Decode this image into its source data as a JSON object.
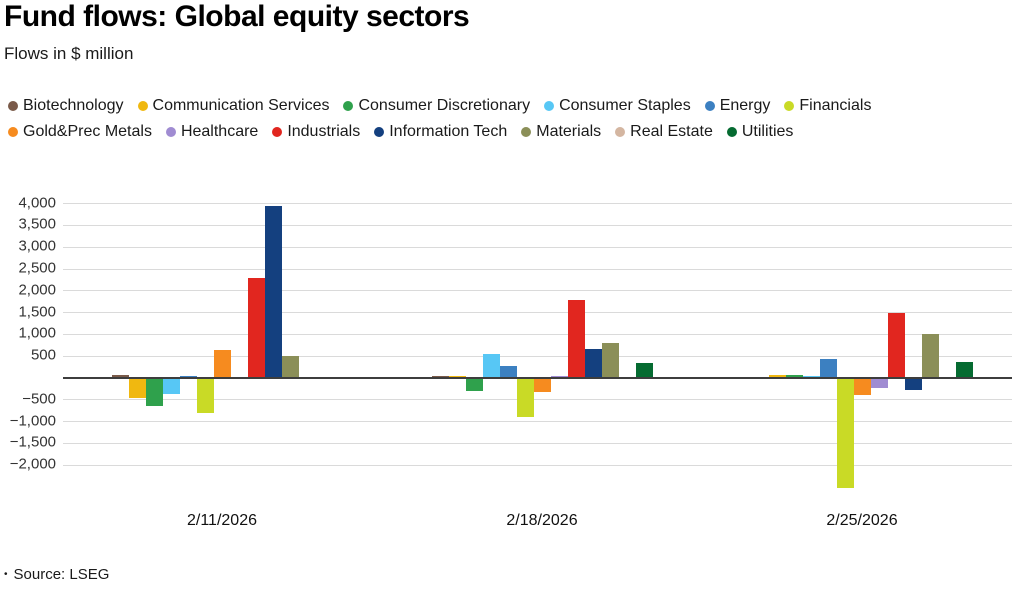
{
  "header": {
    "title": "Fund flows: Global equity sectors",
    "subtitle": "Flows in $ million"
  },
  "chart_data": {
    "type": "bar",
    "title": "Fund flows: Global equity sectors",
    "subtitle": "Flows in $ million",
    "categories": [
      "2/11/2026",
      "2/18/2026",
      "2/25/2026"
    ],
    "series": [
      {
        "name": "Biotechnology",
        "color": "#7a5a49",
        "values": [
          70,
          50,
          0
        ]
      },
      {
        "name": "Communication Services",
        "color": "#f0b810",
        "values": [
          -450,
          40,
          80
        ]
      },
      {
        "name": "Consumer Discretionary",
        "color": "#2fa14c",
        "values": [
          -650,
          -300,
          70
        ]
      },
      {
        "name": "Consumer Staples",
        "color": "#57c7f5",
        "values": [
          -370,
          550,
          50
        ]
      },
      {
        "name": "Energy",
        "color": "#3c80c1",
        "values": [
          50,
          280,
          430
        ]
      },
      {
        "name": "Financials",
        "color": "#c9da26",
        "values": [
          -800,
          -890,
          -2520
        ]
      },
      {
        "name": "Gold&Prec Metals",
        "color": "#f68b1f",
        "values": [
          650,
          -330,
          -400
        ]
      },
      {
        "name": "Healthcare",
        "color": "#a08cd2",
        "values": [
          0,
          50,
          -220
        ]
      },
      {
        "name": "Industrials",
        "color": "#e1261f",
        "values": [
          2300,
          1800,
          1500
        ]
      },
      {
        "name": "Information Tech",
        "color": "#14407f",
        "values": [
          3950,
          660,
          -280
        ]
      },
      {
        "name": "Materials",
        "color": "#8b8f58",
        "values": [
          500,
          810,
          1000
        ]
      },
      {
        "name": "Real Estate",
        "color": "#d4b6a1",
        "values": [
          0,
          -30,
          0
        ]
      },
      {
        "name": "Utilities",
        "color": "#056b31",
        "values": [
          0,
          350,
          360
        ]
      }
    ],
    "y_ticks": [
      "4,000",
      "3,500",
      "3,000",
      "2,500",
      "2,000",
      "1,500",
      "1,000",
      "500",
      "−500",
      "−1,000",
      "−1,500",
      "−2,000"
    ],
    "ylim": [
      -2700,
      4000
    ],
    "grid": true,
    "legend_position": "top",
    "xlabel": "",
    "ylabel": ""
  },
  "footer": {
    "bullet": "•",
    "source": "Source: LSEG"
  }
}
